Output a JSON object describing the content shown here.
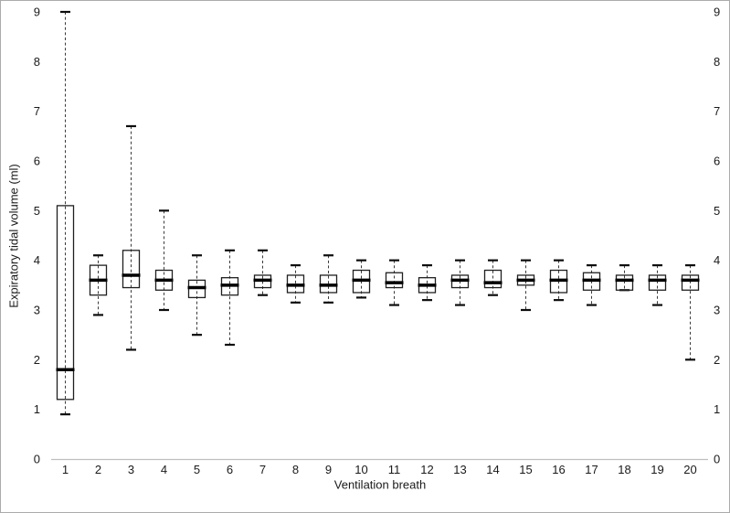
{
  "chart_data": {
    "type": "boxplot",
    "title": "",
    "xlabel": "Ventilation breath",
    "ylabel": "Expiratory tidal volume (ml)",
    "ylim": [
      0,
      9
    ],
    "y_ticks": [
      0,
      1,
      2,
      3,
      4,
      5,
      6,
      7,
      8,
      9
    ],
    "y_axis_right_mirror": true,
    "grid": false,
    "legend": "none",
    "categories": [
      "1",
      "2",
      "3",
      "4",
      "5",
      "6",
      "7",
      "8",
      "9",
      "10",
      "11",
      "12",
      "13",
      "14",
      "15",
      "16",
      "17",
      "18",
      "19",
      "20"
    ],
    "boxes": [
      {
        "category": "1",
        "low": 0.9,
        "q1": 1.2,
        "median": 1.8,
        "q3": 5.1,
        "high": 9.0
      },
      {
        "category": "2",
        "low": 2.9,
        "q1": 3.3,
        "median": 3.6,
        "q3": 3.9,
        "high": 4.1
      },
      {
        "category": "3",
        "low": 2.2,
        "q1": 3.45,
        "median": 3.7,
        "q3": 4.2,
        "high": 6.7
      },
      {
        "category": "4",
        "low": 3.0,
        "q1": 3.4,
        "median": 3.6,
        "q3": 3.8,
        "high": 5.0
      },
      {
        "category": "5",
        "low": 2.5,
        "q1": 3.25,
        "median": 3.45,
        "q3": 3.6,
        "high": 4.1
      },
      {
        "category": "6",
        "low": 2.3,
        "q1": 3.3,
        "median": 3.5,
        "q3": 3.65,
        "high": 4.2
      },
      {
        "category": "7",
        "low": 3.3,
        "q1": 3.45,
        "median": 3.6,
        "q3": 3.7,
        "high": 4.2
      },
      {
        "category": "8",
        "low": 3.15,
        "q1": 3.35,
        "median": 3.5,
        "q3": 3.7,
        "high": 3.9
      },
      {
        "category": "9",
        "low": 3.15,
        "q1": 3.35,
        "median": 3.5,
        "q3": 3.7,
        "high": 4.1
      },
      {
        "category": "10",
        "low": 3.25,
        "q1": 3.35,
        "median": 3.6,
        "q3": 3.8,
        "high": 4.0
      },
      {
        "category": "11",
        "low": 3.1,
        "q1": 3.45,
        "median": 3.55,
        "q3": 3.75,
        "high": 4.0
      },
      {
        "category": "12",
        "low": 3.2,
        "q1": 3.35,
        "median": 3.5,
        "q3": 3.65,
        "high": 3.9
      },
      {
        "category": "13",
        "low": 3.1,
        "q1": 3.45,
        "median": 3.6,
        "q3": 3.7,
        "high": 4.0
      },
      {
        "category": "14",
        "low": 3.3,
        "q1": 3.45,
        "median": 3.55,
        "q3": 3.8,
        "high": 4.0
      },
      {
        "category": "15",
        "low": 3.0,
        "q1": 3.5,
        "median": 3.6,
        "q3": 3.7,
        "high": 4.0
      },
      {
        "category": "16",
        "low": 3.2,
        "q1": 3.35,
        "median": 3.6,
        "q3": 3.8,
        "high": 4.0
      },
      {
        "category": "17",
        "low": 3.1,
        "q1": 3.4,
        "median": 3.6,
        "q3": 3.75,
        "high": 3.9
      },
      {
        "category": "18",
        "low": 3.4,
        "q1": 3.4,
        "median": 3.6,
        "q3": 3.7,
        "high": 3.9
      },
      {
        "category": "19",
        "low": 3.1,
        "q1": 3.4,
        "median": 3.6,
        "q3": 3.7,
        "high": 3.9
      },
      {
        "category": "20",
        "low": 2.0,
        "q1": 3.4,
        "median": 3.6,
        "q3": 3.7,
        "high": 3.9
      }
    ],
    "colors": {
      "background": "#ffffff",
      "figure_border": "#ababab",
      "axis_line": "#bfbfbf",
      "box_border": "#1f1f1f",
      "median": "#000000",
      "whisker": "#3a3a3a",
      "cap": "#0d0d0d",
      "text": "#1a1a1a"
    }
  }
}
